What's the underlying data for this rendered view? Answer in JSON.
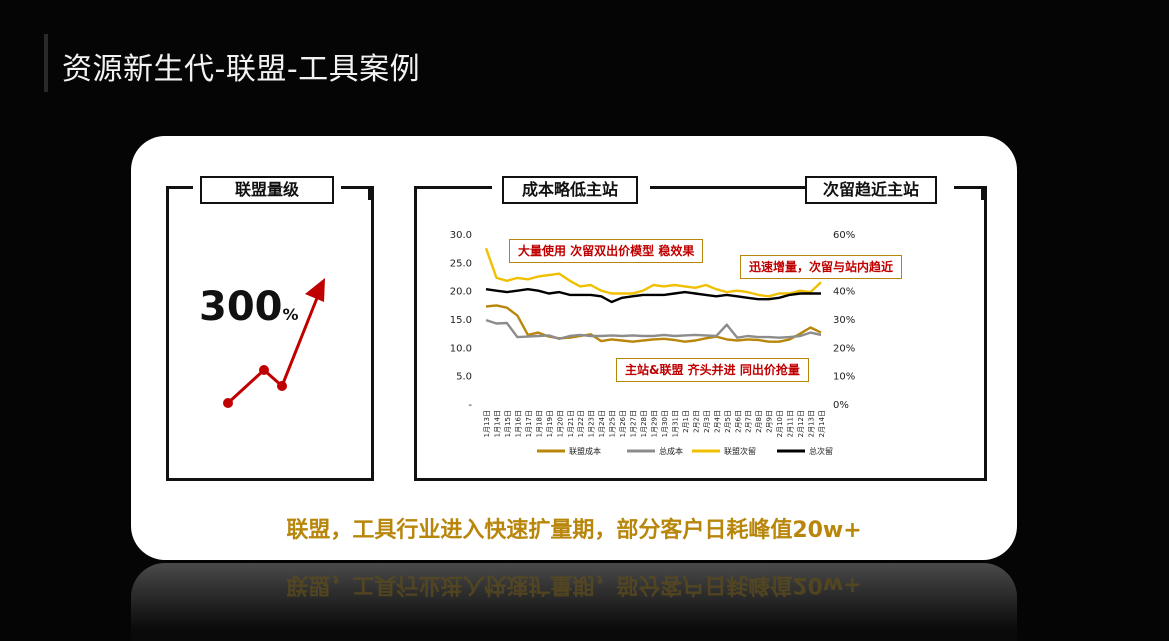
{
  "page_title": "资源新生代-联盟-工具案例",
  "left_panel": {
    "label": "联盟量级",
    "metric_value": "300",
    "metric_unit": "%"
  },
  "right_panel": {
    "label_left": "成本略低主站",
    "label_right": "次留趋近主站"
  },
  "footer": "联盟，工具行业进入快速扩量期，部分客户日耗峰值20w+",
  "annotations": [
    "大量使用 次留双出价模型 稳效果",
    "迅速增量，次留与站内趋近",
    "主站&联盟 齐头并进 同出价抢量"
  ],
  "colors": {
    "accent_gold": "#b8860b",
    "series_gold": "#b8860b",
    "series_gray": "#8c8c8c",
    "series_yellow": "#f0c000",
    "series_black": "#000000",
    "arrow_red": "#c00000"
  },
  "chart_data": {
    "type": "line",
    "x": [
      "1月13日",
      "1月14日",
      "1月15日",
      "1月16日",
      "1月17日",
      "1月18日",
      "1月19日",
      "1月20日",
      "1月21日",
      "1月22日",
      "1月23日",
      "1月24日",
      "1月25日",
      "1月26日",
      "1月27日",
      "1月28日",
      "1月29日",
      "1月30日",
      "1月31日",
      "2月1日",
      "2月2日",
      "2月3日",
      "2月4日",
      "2月5日",
      "2月6日",
      "2月7日",
      "2月8日",
      "2月9日",
      "2月10日",
      "2月11日",
      "2月12日",
      "2月13日",
      "2月14日"
    ],
    "y_left_ticks": [
      "30.0",
      "25.0",
      "20.0",
      "15.0",
      "10.0",
      "5.0",
      "-"
    ],
    "y_left_lim": [
      0,
      30
    ],
    "y_right_ticks": [
      "60%",
      "50%",
      "40%",
      "30%",
      "20%",
      "10%",
      "0%"
    ],
    "y_right_lim": [
      0,
      60
    ],
    "series": [
      {
        "name": "联盟成本",
        "axis": "left",
        "color": "#b8860b",
        "values": [
          17.2,
          17.4,
          17.0,
          15.6,
          12.2,
          12.6,
          11.9,
          11.6,
          11.7,
          12.0,
          12.3,
          11.1,
          11.4,
          11.2,
          11.0,
          11.2,
          11.4,
          11.5,
          11.3,
          11.0,
          11.2,
          11.6,
          11.9,
          11.4,
          11.2,
          11.4,
          11.3,
          11.0,
          11.0,
          11.4,
          12.4,
          13.5,
          12.6
        ]
      },
      {
        "name": "总成本",
        "axis": "left",
        "color": "#8c8c8c",
        "values": [
          14.8,
          14.2,
          14.3,
          11.8,
          11.9,
          12.0,
          12.1,
          11.5,
          12.0,
          12.2,
          12.0,
          12.0,
          12.1,
          12.0,
          12.1,
          12.0,
          12.0,
          12.2,
          12.0,
          12.1,
          12.2,
          12.1,
          12.0,
          14.0,
          11.7,
          12.0,
          11.8,
          11.8,
          11.7,
          11.8,
          12.0,
          12.6,
          12.2
        ]
      },
      {
        "name": "联盟次留",
        "axis": "right",
        "color": "#f0c000",
        "values": [
          55.0,
          44.5,
          43.5,
          44.5,
          44.0,
          45.0,
          45.5,
          46.0,
          43.5,
          41.5,
          42.0,
          40.0,
          39.0,
          39.0,
          39.0,
          40.0,
          42.0,
          41.5,
          42.0,
          41.5,
          41.0,
          42.0,
          40.5,
          39.5,
          40.0,
          39.5,
          38.5,
          38.0,
          39.0,
          39.0,
          40.0,
          39.5,
          43.0
        ]
      },
      {
        "name": "总次留",
        "axis": "right",
        "color": "#000000",
        "values": [
          40.5,
          40.0,
          39.5,
          40.0,
          40.5,
          40.0,
          39.0,
          39.5,
          38.5,
          38.5,
          38.5,
          38.0,
          36.0,
          37.5,
          38.0,
          38.5,
          38.5,
          38.5,
          39.0,
          39.5,
          39.0,
          38.5,
          38.0,
          38.5,
          38.0,
          37.5,
          37.0,
          37.0,
          37.5,
          38.5,
          39.0,
          39.0,
          39.0
        ]
      }
    ]
  }
}
